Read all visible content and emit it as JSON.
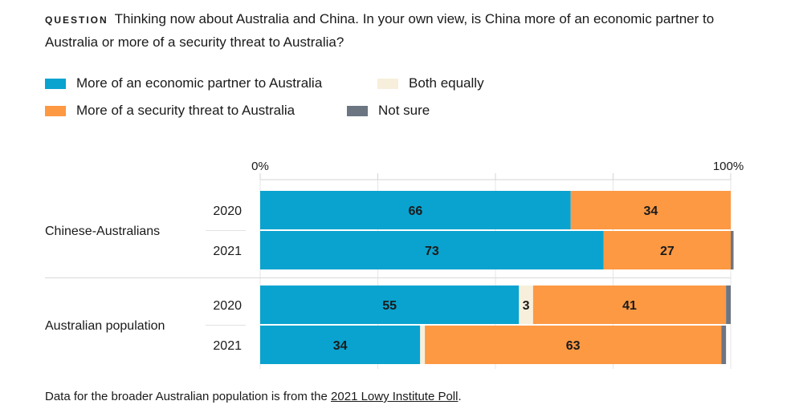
{
  "question": {
    "tag": "QUESTION",
    "text": "Thinking now about Australia and China. In your own view, is China more of an economic partner to Australia or more of a security threat to Australia?"
  },
  "legend": [
    {
      "label": "More of an economic partner to Australia",
      "color": "#0aa3cf"
    },
    {
      "label": "Both equally",
      "color": "#f7efdc"
    },
    {
      "label": "More of a security threat to Australia",
      "color": "#fd9943"
    },
    {
      "label": "Not sure",
      "color": "#6c7682"
    }
  ],
  "chart_data": {
    "type": "bar",
    "orientation": "horizontal",
    "stacked": true,
    "xlim": [
      0,
      100
    ],
    "x_tick_labels": [
      "0%",
      "100%"
    ],
    "grid": true,
    "legend_placement": "top",
    "series": [
      {
        "name": "More of an economic partner to Australia",
        "color": "#0aa3cf",
        "values": [
          66,
          73,
          55,
          34
        ]
      },
      {
        "name": "Both equally",
        "color": "#f7efdc",
        "values": [
          0,
          0,
          3,
          1
        ]
      },
      {
        "name": "More of a security threat to Australia",
        "color": "#fd9943",
        "values": [
          34,
          27,
          41,
          63
        ]
      },
      {
        "name": "Not sure",
        "color": "#6c7682",
        "values": [
          0,
          0.6,
          1,
          1
        ]
      }
    ],
    "groups": [
      {
        "label": "Chinese-Australians",
        "rows": [
          {
            "year": "2020",
            "labels": [
              "66",
              "",
              "34",
              ""
            ]
          },
          {
            "year": "2021",
            "labels": [
              "73",
              "",
              "27",
              ""
            ]
          }
        ]
      },
      {
        "label": "Australian population",
        "rows": [
          {
            "year": "2020",
            "labels": [
              "55",
              "3",
              "41",
              ""
            ]
          },
          {
            "year": "2021",
            "labels": [
              "34",
              "",
              "63",
              ""
            ]
          }
        ]
      }
    ]
  },
  "footnote": {
    "text": "Data for the broader Australian population is from the ",
    "link": "2021 Lowy Institute Poll",
    "end": "."
  }
}
